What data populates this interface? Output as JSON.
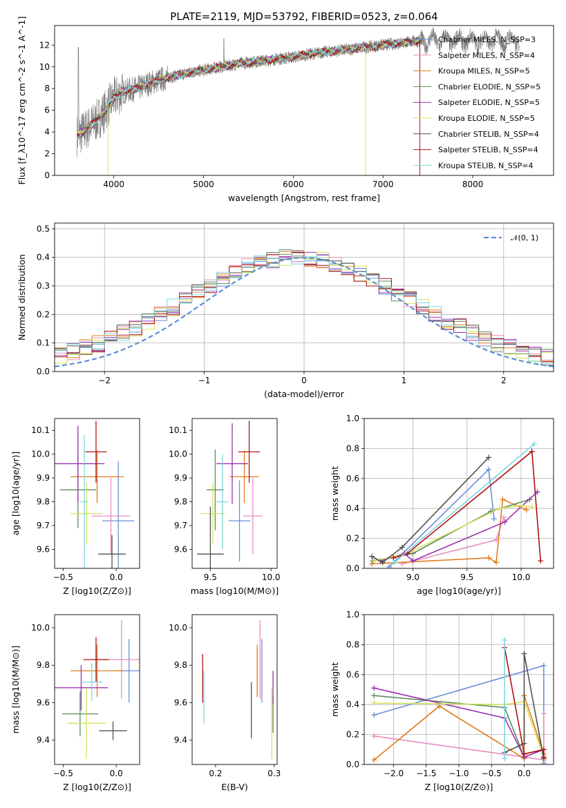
{
  "chart_data": [
    {
      "id": "spectrum",
      "type": "line",
      "title": "PLATE=2119, MJD=53792, FIBERID=0523, z=0.064",
      "xlabel": "wavelength [Angstrom, rest frame]",
      "ylabel": "Flux [f_λ10^-17 erg cm^-2 s^-1 A^-1]",
      "xlim": [
        3340,
        8900
      ],
      "ylim": [
        0,
        13.8
      ],
      "xticks": [
        4000,
        5000,
        6000,
        7000,
        8000
      ],
      "yticks": [
        0,
        2,
        4,
        6,
        8,
        10,
        12
      ],
      "data_color": "#808080",
      "model_continuum": {
        "x": [
          3600,
          3700,
          3800,
          3900,
          4000,
          4100,
          4200,
          4300,
          4400,
          4600,
          4800,
          5000,
          5200,
          5400,
          5600,
          5800,
          6000,
          6200,
          6400,
          6600,
          6800,
          7000,
          7200,
          7400
        ],
        "y": [
          3.7,
          4.3,
          5.0,
          5.9,
          7.1,
          7.7,
          7.9,
          8.1,
          8.5,
          9.0,
          9.4,
          9.7,
          10.0,
          10.3,
          10.5,
          10.7,
          10.9,
          11.2,
          11.4,
          11.6,
          11.8,
          12.0,
          12.2,
          12.4
        ]
      },
      "legend": {
        "loc": "upper right",
        "entries": [
          {
            "label": "Chabrier MILES, N_SSP=3",
            "color": "#6a8fd8"
          },
          {
            "label": "Salpeter MILES, N_SSP=4",
            "color": "#e88cbf"
          },
          {
            "label": "Kroupa MILES, N_SSP=5",
            "color": "#e07b1c"
          },
          {
            "label": "Chabrier ELODIE, N_SSP=5",
            "color": "#5c8a5c"
          },
          {
            "label": "Salpeter ELODIE, N_SSP=5",
            "color": "#9a2fb0"
          },
          {
            "label": "Kroupa ELODIE, N_SSP=5",
            "color": "#d4e35a"
          },
          {
            "label": "Chabrier STELIB, N_SSP=4",
            "color": "#505050"
          },
          {
            "label": "Salpeter STELIB, N_SSP=4",
            "color": "#b01010"
          },
          {
            "label": "Kroupa STELIB, N_SSP=4",
            "color": "#7fd6e0"
          }
        ]
      }
    },
    {
      "id": "residuals",
      "type": "line",
      "xlabel": "(data-model)/error",
      "ylabel": "Normed distribution",
      "xlim": [
        -2.5,
        2.5
      ],
      "ylim": [
        0,
        0.52
      ],
      "xticks": [
        -2,
        -1,
        0,
        1,
        2
      ],
      "xtick_labels": [
        "−2",
        "−1",
        "0",
        "1",
        "2"
      ],
      "yticks": [
        0.0,
        0.1,
        0.2,
        0.3,
        0.4,
        0.5
      ],
      "ytick_labels": [
        "0.0",
        "0.1",
        "0.2",
        "0.3",
        "0.4",
        "0.5"
      ],
      "grid": true,
      "legend": {
        "loc": "upper right",
        "entries": [
          {
            "label": "𝒩(0, 1)",
            "color": "#5b8ed6",
            "style": "dashed"
          }
        ]
      },
      "bin_width": 0.125,
      "hist_base": [
        0.025,
        0.033,
        0.04,
        0.048,
        0.058,
        0.07,
        0.083,
        0.098,
        0.115,
        0.134,
        0.155,
        0.177,
        0.2,
        0.225,
        0.251,
        0.276,
        0.3,
        0.324,
        0.346,
        0.365,
        0.38,
        0.392,
        0.399,
        0.401,
        0.399,
        0.392,
        0.38,
        0.365,
        0.346,
        0.324,
        0.3,
        0.276,
        0.251,
        0.225,
        0.2,
        0.177,
        0.155,
        0.134,
        0.115,
        0.098,
        0.083,
        0.07,
        0.058,
        0.048,
        0.04,
        0.033,
        0.028,
        0.025
      ]
    },
    {
      "id": "age-vs-Z",
      "type": "errorbar",
      "xlabel": "Z [log10(Z/Z⊙)]",
      "ylabel": "age  [log10(age/yr)]",
      "xlim": [
        -0.58,
        0.22
      ],
      "ylim": [
        9.52,
        10.15
      ],
      "xticks": [
        -0.5,
        0.0
      ],
      "xtick_labels": [
        "−0.5",
        "0.0"
      ],
      "yticks": [
        9.6,
        9.7,
        9.8,
        9.9,
        10.0,
        10.1
      ],
      "ytick_labels": [
        "9.6",
        "9.7",
        "9.8",
        "9.9",
        "10.0",
        "10.1"
      ],
      "points": [
        {
          "x": 0.02,
          "y": 9.72,
          "xerr": 0.15,
          "yerr": 0.25,
          "color": "#6a8fd8"
        },
        {
          "x": -0.05,
          "y": 9.74,
          "xerr": 0.18,
          "yerr": 0.16,
          "color": "#e88cbf"
        },
        {
          "x": -0.18,
          "y": 9.905,
          "xerr": 0.25,
          "yerr": 0.11,
          "color": "#e07b1c"
        },
        {
          "x": -0.36,
          "y": 9.85,
          "xerr": 0.17,
          "yerr": 0.16,
          "color": "#5c8a5c"
        },
        {
          "x": -0.36,
          "y": 9.96,
          "xerr": 0.25,
          "yerr": 0.16,
          "color": "#9a2fb0"
        },
        {
          "x": -0.28,
          "y": 9.75,
          "xerr": 0.15,
          "yerr": 0.13,
          "color": "#d4e35a"
        },
        {
          "x": -0.04,
          "y": 9.58,
          "xerr": 0.13,
          "yerr": 0.08,
          "color": "#505050"
        },
        {
          "x": -0.19,
          "y": 10.01,
          "xerr": 0.1,
          "yerr": 0.13,
          "color": "#b01010"
        },
        {
          "x": -0.3,
          "y": 9.8,
          "xerr": 0.04,
          "yerr": 0.28,
          "color": "#7fd6e0"
        }
      ]
    },
    {
      "id": "age-vs-mass",
      "type": "errorbar",
      "xlabel": "mass [log10(M/M⊙)]",
      "xlim": [
        9.35,
        10.05
      ],
      "ylim": [
        9.52,
        10.15
      ],
      "xticks": [
        9.5,
        10.0
      ],
      "xtick_labels": [
        "9.5",
        "10.0"
      ],
      "yticks": [
        9.6,
        9.7,
        9.8,
        9.9,
        10.0,
        10.1
      ],
      "ytick_labels": [
        "9.6",
        "9.7",
        "9.8",
        "9.9",
        "10.0",
        "10.1"
      ],
      "points": [
        {
          "x": 9.74,
          "y": 9.72,
          "xerr": 0.09,
          "yerr": 0.17,
          "color": "#6a8fd8"
        },
        {
          "x": 9.85,
          "y": 9.74,
          "xerr": 0.08,
          "yerr": 0.16,
          "color": "#e88cbf"
        },
        {
          "x": 9.78,
          "y": 9.905,
          "xerr": 0.12,
          "yerr": 0.11,
          "color": "#e07b1c"
        },
        {
          "x": 9.54,
          "y": 9.85,
          "xerr": 0.07,
          "yerr": 0.17,
          "color": "#5c8a5c"
        },
        {
          "x": 9.68,
          "y": 9.96,
          "xerr": 0.13,
          "yerr": 0.17,
          "color": "#9a2fb0"
        },
        {
          "x": 9.52,
          "y": 9.75,
          "xerr": 0.1,
          "yerr": 0.13,
          "color": "#d4e35a"
        },
        {
          "x": 9.5,
          "y": 9.58,
          "xerr": 0.11,
          "yerr": 0.2,
          "color": "#505050"
        },
        {
          "x": 9.82,
          "y": 10.01,
          "xerr": 0.09,
          "yerr": 0.13,
          "color": "#b01010"
        },
        {
          "x": 9.6,
          "y": 9.8,
          "xerr": 0.05,
          "yerr": 0.2,
          "color": "#7fd6e0"
        }
      ]
    },
    {
      "id": "massweight-vs-age",
      "type": "line",
      "xlabel": "age  [log10(age/yr)]",
      "ylabel": "mass weight",
      "xlim": [
        8.55,
        10.3
      ],
      "ylim": [
        0.0,
        1.0
      ],
      "xticks": [
        9.0,
        9.5,
        10.0
      ],
      "xtick_labels": [
        "9.0",
        "9.5",
        "10.0"
      ],
      "yticks": [
        0.0,
        0.2,
        0.4,
        0.6,
        0.8,
        1.0
      ],
      "ytick_labels": [
        "0.0",
        "0.2",
        "0.4",
        "0.6",
        "0.8",
        "1.0"
      ],
      "grid": true,
      "series": [
        {
          "color": "#6a8fd8",
          "x": [
            8.78,
            9.7,
            9.75
          ],
          "y": [
            0.01,
            0.66,
            0.33
          ]
        },
        {
          "color": "#e88cbf",
          "x": [
            8.9,
            9.77,
            9.84
          ],
          "y": [
            0.03,
            0.19,
            0.34
          ]
        },
        {
          "color": "#e07b1c",
          "x": [
            8.62,
            9.7,
            9.77,
            9.83,
            10.05
          ],
          "y": [
            0.03,
            0.07,
            0.04,
            0.46,
            0.39
          ]
        },
        {
          "color": "#5c8a5c",
          "x": [
            8.63,
            9.0,
            9.72,
            10.08
          ],
          "y": [
            0.05,
            0.1,
            0.38,
            0.46
          ]
        },
        {
          "color": "#9a2fb0",
          "x": [
            8.7,
            8.92,
            9.0,
            9.85,
            10.15
          ],
          "y": [
            0.05,
            0.1,
            0.05,
            0.31,
            0.51
          ]
        },
        {
          "color": "#d4e35a",
          "x": [
            8.65,
            8.95,
            9.8,
            10.0,
            10.1
          ],
          "y": [
            0.05,
            0.1,
            0.4,
            0.42,
            0.41
          ]
        },
        {
          "color": "#505050",
          "x": [
            8.62,
            8.72,
            8.9,
            9.7
          ],
          "y": [
            0.08,
            0.04,
            0.14,
            0.74
          ]
        },
        {
          "color": "#b01010",
          "x": [
            8.82,
            8.95,
            10.1,
            10.18
          ],
          "y": [
            0.07,
            0.1,
            0.78,
            0.05
          ]
        },
        {
          "color": "#7fd6e0",
          "x": [
            8.83,
            10.12
          ],
          "y": [
            0.04,
            0.83
          ]
        }
      ]
    },
    {
      "id": "mass-vs-Z",
      "type": "errorbar",
      "xlabel": "Z [log10(Z/Z⊙)]",
      "ylabel": "mass [log10(M/M⊙)]",
      "xlim": [
        -0.58,
        0.22
      ],
      "ylim": [
        9.27,
        10.07
      ],
      "xticks": [
        -0.5,
        0.0
      ],
      "xtick_labels": [
        "−0.5",
        "0.0"
      ],
      "yticks": [
        9.4,
        9.6,
        9.8,
        10.0
      ],
      "ytick_labels": [
        "9.4",
        "9.6",
        "9.8",
        "10.0"
      ],
      "points": [
        {
          "x": 0.12,
          "y": 9.77,
          "xerr": 0.1,
          "yerr": 0.17,
          "color": "#6a8fd8"
        },
        {
          "x": 0.05,
          "y": 9.83,
          "xerr": 0.17,
          "yerr": 0.21,
          "color": "#e88cbf"
        },
        {
          "x": -0.18,
          "y": 9.77,
          "xerr": 0.25,
          "yerr": 0.14,
          "color": "#e07b1c"
        },
        {
          "x": -0.34,
          "y": 9.54,
          "xerr": 0.17,
          "yerr": 0.12,
          "color": "#5c8a5c"
        },
        {
          "x": -0.33,
          "y": 9.68,
          "xerr": 0.25,
          "yerr": 0.12,
          "color": "#9a2fb0"
        },
        {
          "x": -0.28,
          "y": 9.49,
          "xerr": 0.18,
          "yerr": 0.19,
          "color": "#d4e35a"
        },
        {
          "x": -0.03,
          "y": 9.45,
          "xerr": 0.13,
          "yerr": 0.05,
          "color": "#505050"
        },
        {
          "x": -0.19,
          "y": 9.83,
          "xerr": 0.12,
          "yerr": 0.12,
          "color": "#b01010"
        },
        {
          "x": -0.23,
          "y": 9.71,
          "xerr": 0.1,
          "yerr": 0.1,
          "color": "#7fd6e0"
        }
      ]
    },
    {
      "id": "mass-vs-EBV",
      "type": "errorbar",
      "xlabel": "E(B-V)",
      "xlim": [
        0.16,
        0.305
      ],
      "ylim": [
        9.27,
        10.07
      ],
      "xticks": [
        0.2,
        0.3
      ],
      "xtick_labels": [
        "0.2",
        "0.3"
      ],
      "yticks": [
        9.4,
        9.6,
        9.8,
        10.0
      ],
      "ytick_labels": [
        "9.4",
        "9.6",
        "9.8",
        "10.0"
      ],
      "points": [
        {
          "x": 0.279,
          "y": 9.77,
          "xerr": 0,
          "yerr": 0.17,
          "color": "#6a8fd8"
        },
        {
          "x": 0.276,
          "y": 9.83,
          "xerr": 0,
          "yerr": 0.21,
          "color": "#e88cbf"
        },
        {
          "x": 0.271,
          "y": 9.77,
          "xerr": 0,
          "yerr": 0.14,
          "color": "#e07b1c"
        },
        {
          "x": 0.298,
          "y": 9.54,
          "xerr": 0,
          "yerr": 0.1,
          "color": "#5c8a5c"
        },
        {
          "x": 0.298,
          "y": 9.68,
          "xerr": 0,
          "yerr": 0.09,
          "color": "#9a2fb0"
        },
        {
          "x": 0.296,
          "y": 9.49,
          "xerr": 0,
          "yerr": 0.19,
          "color": "#d4e35a"
        },
        {
          "x": 0.261,
          "y": 9.56,
          "xerr": 0,
          "yerr": 0.15,
          "color": "#505050"
        },
        {
          "x": 0.178,
          "y": 9.73,
          "xerr": 0,
          "yerr": 0.13,
          "color": "#b01010"
        },
        {
          "x": 0.18,
          "y": 9.63,
          "xerr": 0,
          "yerr": 0.14,
          "color": "#7fd6e0"
        }
      ]
    },
    {
      "id": "massweight-vs-Z",
      "type": "line",
      "xlabel": "Z [log10(Z/Z⊙)]",
      "ylabel": "mass weight",
      "xlim": [
        -2.45,
        0.45
      ],
      "ylim": [
        0.0,
        1.0
      ],
      "xticks": [
        -2.0,
        -1.5,
        -1.0,
        -0.5,
        0.0
      ],
      "xtick_labels": [
        "−2.0",
        "−1.5",
        "−1.0",
        "−0.5",
        "0.0"
      ],
      "yticks": [
        0.0,
        0.2,
        0.4,
        0.6,
        0.8,
        1.0
      ],
      "ytick_labels": [
        "0.0",
        "0.2",
        "0.4",
        "0.6",
        "0.8",
        "1.0"
      ],
      "grid": true,
      "series": [
        {
          "color": "#6a8fd8",
          "x": [
            -2.3,
            0.3,
            0.3
          ],
          "y": [
            0.33,
            0.66,
            0.01
          ]
        },
        {
          "color": "#e88cbf",
          "x": [
            -2.3,
            0.0,
            0.3,
            0.3
          ],
          "y": [
            0.19,
            0.05,
            0.03,
            0.34
          ]
        },
        {
          "color": "#e07b1c",
          "x": [
            -2.3,
            -1.3,
            0.0,
            0.0,
            0.3,
            0.3
          ],
          "y": [
            0.03,
            0.39,
            0.04,
            0.46,
            0.07,
            0.04
          ]
        },
        {
          "color": "#5c8a5c",
          "x": [
            -2.3,
            -0.3,
            0.0,
            0.3
          ],
          "y": [
            0.46,
            0.38,
            0.05,
            0.1
          ]
        },
        {
          "color": "#9a2fb0",
          "x": [
            -2.3,
            -0.3,
            0.0,
            0.3,
            0.3
          ],
          "y": [
            0.51,
            0.31,
            0.05,
            0.1,
            0.05
          ]
        },
        {
          "color": "#d4e35a",
          "x": [
            -2.3,
            -0.3,
            0.0,
            0.3,
            0.3
          ],
          "y": [
            0.41,
            0.4,
            0.42,
            0.05,
            0.1
          ]
        },
        {
          "color": "#505050",
          "x": [
            -0.3,
            0.0,
            0.0,
            0.3
          ],
          "y": [
            0.08,
            0.14,
            0.74,
            0.04
          ]
        },
        {
          "color": "#b01010",
          "x": [
            -0.3,
            0.0,
            0.3,
            0.3
          ],
          "y": [
            0.78,
            0.07,
            0.1,
            0.05
          ]
        },
        {
          "color": "#7fd6e0",
          "x": [
            -0.3,
            -0.3
          ],
          "y": [
            0.04,
            0.83
          ]
        }
      ]
    }
  ]
}
